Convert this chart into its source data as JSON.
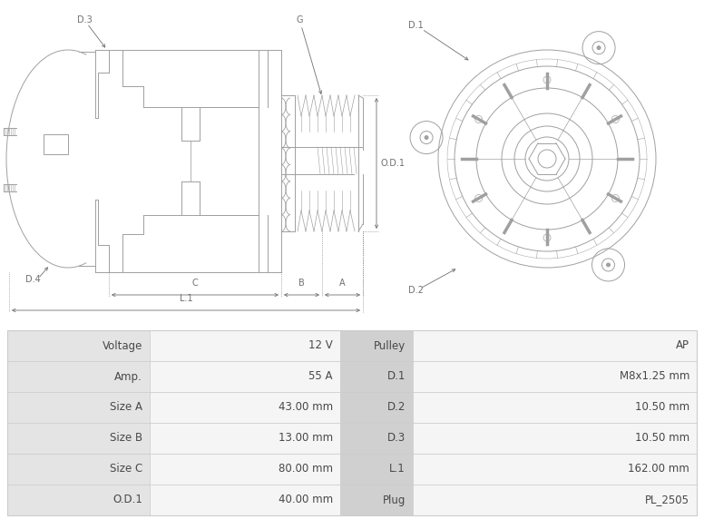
{
  "bg_color": "#ffffff",
  "table_bg_label": "#e4e4e4",
  "table_bg_value": "#f5f5f5",
  "table_bg_mid": "#d0d0d0",
  "table_border": "#cccccc",
  "lc": "#a0a0a0",
  "ac": "#707070",
  "rows": [
    [
      "Voltage",
      "12 V",
      "Pulley",
      "AP"
    ],
    [
      "Amp.",
      "55 A",
      "D.1",
      "M8x1.25 mm"
    ],
    [
      "Size A",
      "43.00 mm",
      "D.2",
      "10.50 mm"
    ],
    [
      "Size B",
      "13.00 mm",
      "D.3",
      "10.50 mm"
    ],
    [
      "Size C",
      "80.00 mm",
      "L.1",
      "162.00 mm"
    ],
    [
      "O.D.1",
      "40.00 mm",
      "Plug",
      "PL_2505"
    ]
  ]
}
